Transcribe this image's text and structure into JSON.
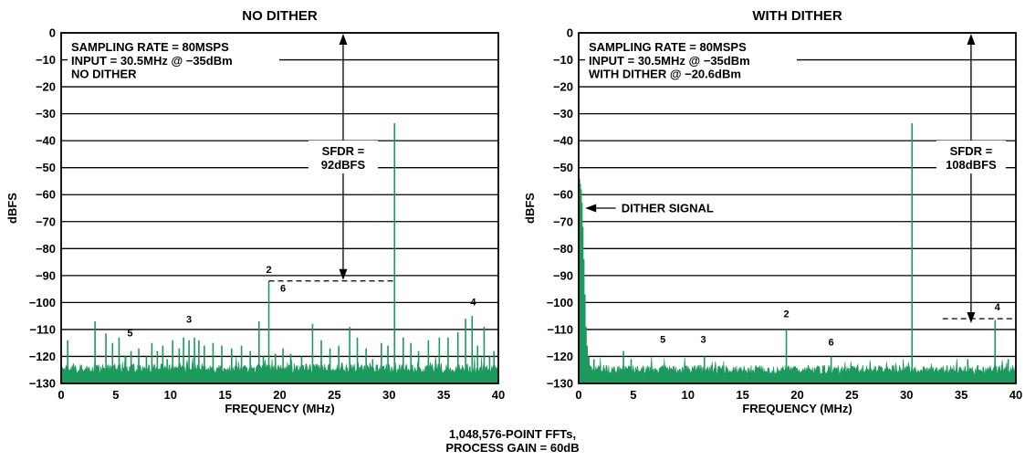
{
  "footnote": {
    "line1": "1,048,576-POINT FFTs,",
    "line2": "PROCESS GAIN = 60dB"
  },
  "chart_data": [
    {
      "type": "line",
      "title": "NO DITHER",
      "xlabel": "FREQUENCY (MHz)",
      "ylabel": "dBFS",
      "xlim": [
        0,
        40
      ],
      "ylim": [
        -130,
        0
      ],
      "xticks": [
        "0",
        "5",
        "10",
        "15",
        "20",
        "25",
        "30",
        "35",
        "40"
      ],
      "yticks": [
        "0",
        "−10",
        "−20",
        "−30",
        "−40",
        "−50",
        "−60",
        "−70",
        "−80",
        "−90",
        "−100",
        "−110",
        "−120",
        "−130"
      ],
      "grid": true,
      "series_color": "#1a9a5c",
      "noise_floor": -124.5,
      "info_lines": [
        "SAMPLING RATE = 80MSPS",
        "INPUT = 30.5MHz @ −35dBm",
        "NO DITHER"
      ],
      "sfdr_label": [
        "SFDR =",
        "92dBFS"
      ],
      "sfdr_span": {
        "x": 25.8,
        "from": 0,
        "to": -92
      },
      "reference_line": {
        "y": -92,
        "x_from": 19,
        "x_to": 30.5
      },
      "arrow_label": null,
      "harmonic_labels": [
        {
          "text": "2",
          "x": 19,
          "y": -89
        },
        {
          "text": "6",
          "x": 20.3,
          "y": -96
        },
        {
          "text": "3",
          "x": 11.7,
          "y": -107.5
        },
        {
          "text": "5",
          "x": 6.3,
          "y": -112.5
        },
        {
          "text": "4",
          "x": 37.7,
          "y": -101
        }
      ],
      "spurs": [
        {
          "x": 0.6,
          "y": -114
        },
        {
          "x": 3.1,
          "y": -107
        },
        {
          "x": 4.1,
          "y": -111.5
        },
        {
          "x": 4.7,
          "y": -115
        },
        {
          "x": 5.3,
          "y": -113
        },
        {
          "x": 5.9,
          "y": -120
        },
        {
          "x": 6.4,
          "y": -118
        },
        {
          "x": 7.1,
          "y": -117
        },
        {
          "x": 7.8,
          "y": -120
        },
        {
          "x": 8.3,
          "y": -115
        },
        {
          "x": 8.8,
          "y": -118
        },
        {
          "x": 9.3,
          "y": -116
        },
        {
          "x": 9.7,
          "y": -121
        },
        {
          "x": 10.2,
          "y": -114
        },
        {
          "x": 10.8,
          "y": -117
        },
        {
          "x": 11.2,
          "y": -113
        },
        {
          "x": 11.7,
          "y": -114
        },
        {
          "x": 12.2,
          "y": -113
        },
        {
          "x": 12.6,
          "y": -114
        },
        {
          "x": 13.1,
          "y": -116
        },
        {
          "x": 13.9,
          "y": -115
        },
        {
          "x": 14.7,
          "y": -116
        },
        {
          "x": 15.6,
          "y": -117
        },
        {
          "x": 16.5,
          "y": -116
        },
        {
          "x": 17.3,
          "y": -118
        },
        {
          "x": 18.1,
          "y": -107
        },
        {
          "x": 18.5,
          "y": -120
        },
        {
          "x": 19.0,
          "y": -92
        },
        {
          "x": 19.6,
          "y": -119
        },
        {
          "x": 20.3,
          "y": -117
        },
        {
          "x": 21.0,
          "y": -119
        },
        {
          "x": 22.0,
          "y": -120
        },
        {
          "x": 23.0,
          "y": -108
        },
        {
          "x": 23.8,
          "y": -114
        },
        {
          "x": 24.6,
          "y": -117
        },
        {
          "x": 25.4,
          "y": -116
        },
        {
          "x": 26.4,
          "y": -109
        },
        {
          "x": 27.1,
          "y": -113
        },
        {
          "x": 27.9,
          "y": -117
        },
        {
          "x": 28.5,
          "y": -121
        },
        {
          "x": 29.3,
          "y": -115
        },
        {
          "x": 29.9,
          "y": -116
        },
        {
          "x": 30.5,
          "y": -33.5
        },
        {
          "x": 31.3,
          "y": -113
        },
        {
          "x": 32.0,
          "y": -115
        },
        {
          "x": 32.7,
          "y": -118
        },
        {
          "x": 33.6,
          "y": -114
        },
        {
          "x": 34.6,
          "y": -113
        },
        {
          "x": 35.4,
          "y": -113
        },
        {
          "x": 36.3,
          "y": -111
        },
        {
          "x": 37.0,
          "y": -106
        },
        {
          "x": 37.6,
          "y": -105
        },
        {
          "x": 38.1,
          "y": -116
        },
        {
          "x": 38.7,
          "y": -109
        },
        {
          "x": 39.2,
          "y": -120
        },
        {
          "x": 39.6,
          "y": -118
        }
      ]
    },
    {
      "type": "line",
      "title": "WITH DITHER",
      "xlabel": "FREQUENCY (MHz)",
      "ylabel": "dBFS",
      "xlim": [
        0,
        40
      ],
      "ylim": [
        -130,
        0
      ],
      "xticks": [
        "0",
        "5",
        "10",
        "15",
        "20",
        "25",
        "30",
        "35",
        "40"
      ],
      "yticks": [
        "0",
        "−10",
        "−20",
        "−30",
        "−40",
        "−50",
        "−60",
        "−70",
        "−80",
        "−90",
        "−100",
        "−110",
        "−120",
        "−130"
      ],
      "grid": true,
      "series_color": "#1a9a5c",
      "noise_floor": -125,
      "info_lines": [
        "SAMPLING RATE = 80MSPS",
        "INPUT = 30.5MHz @ −35dBm",
        "WITH DITHER @ −20.6dBm"
      ],
      "sfdr_label": [
        "SFDR =",
        "108dBFS"
      ],
      "sfdr_span": {
        "x": 35.9,
        "from": 0,
        "to": -108
      },
      "reference_line": {
        "y": -106,
        "x_from": 33.3,
        "x_to": 40
      },
      "arrow_label": {
        "text": "DITHER SIGNAL",
        "x": 3.9,
        "y": -65,
        "tip_x": 0.6
      },
      "harmonic_labels": [
        {
          "text": "2",
          "x": 19,
          "y": -105.5
        },
        {
          "text": "5",
          "x": 7.7,
          "y": -115
        },
        {
          "text": "3",
          "x": 11.4,
          "y": -115
        },
        {
          "text": "6",
          "x": 23.1,
          "y": -116
        },
        {
          "text": "4",
          "x": 38.3,
          "y": -103
        }
      ],
      "dither_hump": [
        {
          "x": 0.05,
          "y": -54
        },
        {
          "x": 0.12,
          "y": -56
        },
        {
          "x": 0.2,
          "y": -58
        },
        {
          "x": 0.28,
          "y": -63
        },
        {
          "x": 0.36,
          "y": -72
        },
        {
          "x": 0.45,
          "y": -84
        },
        {
          "x": 0.55,
          "y": -97
        },
        {
          "x": 0.65,
          "y": -109
        },
        {
          "x": 0.75,
          "y": -116
        },
        {
          "x": 0.9,
          "y": -120
        }
      ],
      "spurs": [
        {
          "x": 1.4,
          "y": -121
        },
        {
          "x": 4.1,
          "y": -118
        },
        {
          "x": 4.8,
          "y": -121
        },
        {
          "x": 11.5,
          "y": -120
        },
        {
          "x": 19.0,
          "y": -110
        },
        {
          "x": 23.1,
          "y": -120
        },
        {
          "x": 30.5,
          "y": -33.5
        },
        {
          "x": 35.6,
          "y": -121
        },
        {
          "x": 38.1,
          "y": -106.5
        },
        {
          "x": 39.3,
          "y": -121
        }
      ]
    }
  ]
}
